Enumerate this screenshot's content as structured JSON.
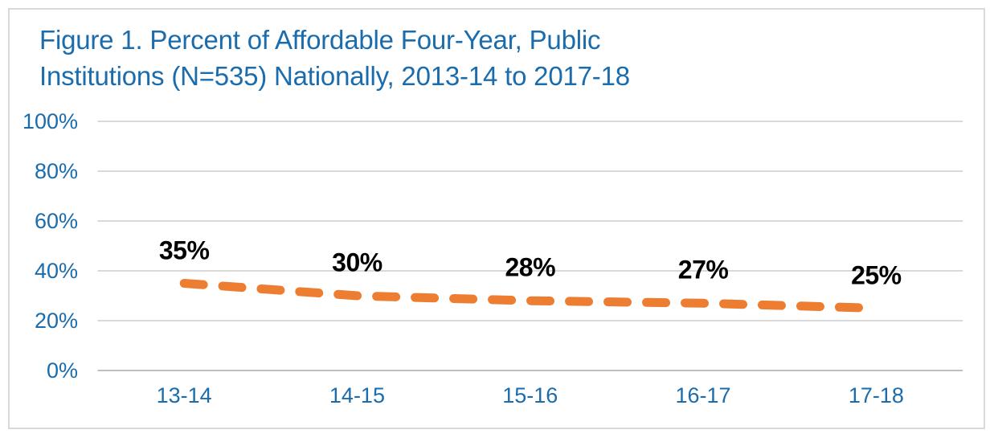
{
  "chart_data": {
    "type": "line",
    "title": "Figure 1. Percent of Affordable Four-Year, Public Institutions (N=535) Nationally, 2013-14 to 2017-18",
    "title_lines": [
      "Figure 1. Percent of Affordable Four-Year, Public",
      "Institutions (N=535) Nationally, 2013-14 to 2017-18"
    ],
    "categories": [
      "13-14",
      "14-15",
      "15-16",
      "16-17",
      "17-18"
    ],
    "values": [
      35,
      30,
      28,
      27,
      25
    ],
    "data_labels": [
      "35%",
      "30%",
      "28%",
      "27%",
      "25%"
    ],
    "xlabel": "",
    "ylabel": "",
    "ylim": [
      0,
      100
    ],
    "yticks": [
      0,
      20,
      40,
      60,
      80,
      100
    ],
    "ytick_labels": [
      "0%",
      "20%",
      "40%",
      "60%",
      "80%",
      "100%"
    ],
    "grid": true,
    "legend": "none",
    "line_style": "dashed",
    "colors": {
      "line": "#ED7D31",
      "title_text": "#1A6CAC",
      "tick_text": "#1A6CAC",
      "data_label_text": "#000000",
      "gridline": "#D9D9D9",
      "axis_line": "#BFBFBF",
      "frame_border": "#D9D9D9",
      "background": "#FFFFFF"
    }
  }
}
